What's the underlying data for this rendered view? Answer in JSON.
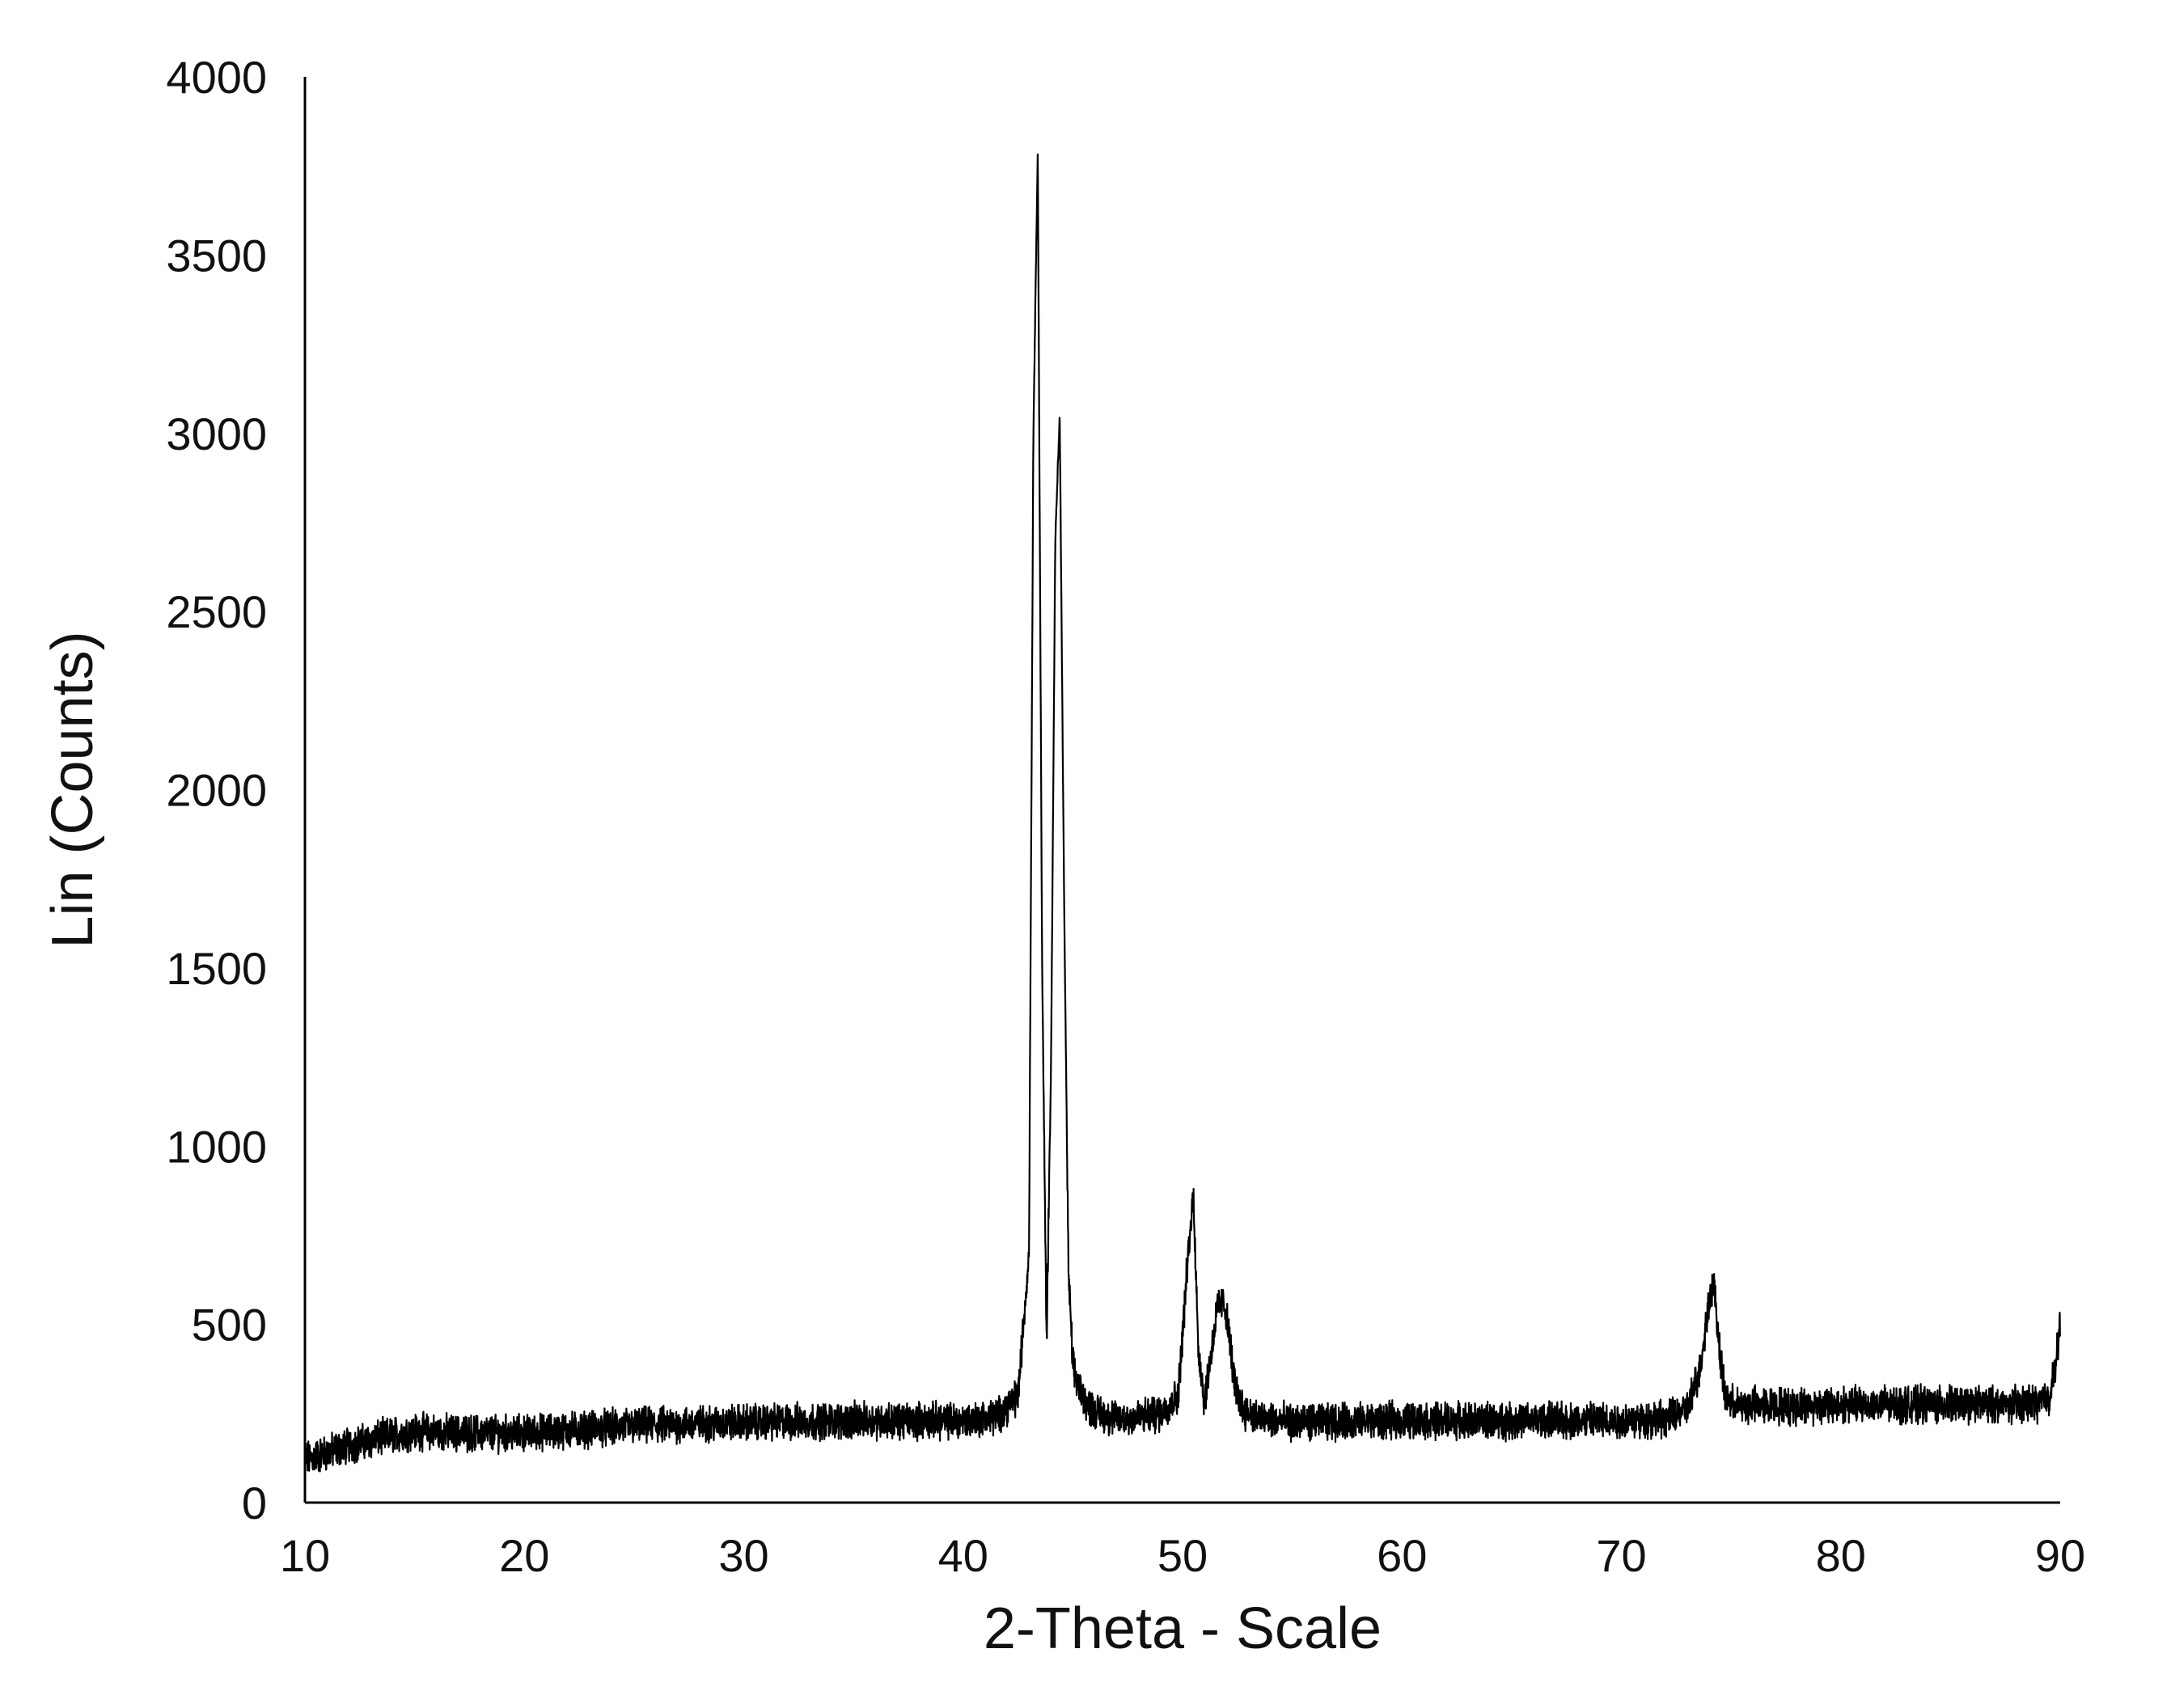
{
  "chart_data": {
    "type": "line",
    "xlabel": "2-Theta - Scale",
    "ylabel": "Lin (Counts)",
    "xlim": [
      10,
      90
    ],
    "ylim": [
      0,
      4000
    ],
    "x_ticks": [
      "10",
      "20",
      "30",
      "40",
      "50",
      "60",
      "70",
      "80",
      "90"
    ],
    "y_ticks": [
      "0",
      "500",
      "1000",
      "1500",
      "2000",
      "2500",
      "3000",
      "3500",
      "4000"
    ],
    "grid": false,
    "legend": "none",
    "line_color": "#000000",
    "series": [
      {
        "x": [
          10,
          12,
          14,
          15,
          17,
          20,
          25,
          30,
          35,
          40,
          41.5,
          42.5,
          43.0,
          43.2,
          43.4,
          43.6,
          43.8,
          44.0,
          44.2,
          44.4,
          44.6,
          44.8,
          45.0,
          45.3,
          45.7,
          46.2,
          47,
          48,
          49,
          49.8,
          50.2,
          50.5,
          50.7,
          51.0,
          51.3,
          51.6,
          51.9,
          52.1,
          52.4,
          52.8,
          53.5,
          55,
          60,
          65,
          70,
          72,
          73,
          73.6,
          74.0,
          74.2,
          74.4,
          74.7,
          75.2,
          76,
          78,
          80,
          85,
          88,
          89,
          89.5,
          89.8,
          90
        ],
        "y": [
          120,
          160,
          190,
          200,
          195,
          195,
          215,
          225,
          230,
          230,
          240,
          300,
          700,
          3000,
          3800,
          1500,
          450,
          1200,
          2700,
          3050,
          1700,
          650,
          380,
          320,
          270,
          250,
          235,
          240,
          250,
          300,
          650,
          870,
          450,
          280,
          420,
          550,
          560,
          480,
          320,
          260,
          235,
          225,
          230,
          230,
          230,
          235,
          260,
          380,
          570,
          620,
          480,
          300,
          270,
          275,
          270,
          275,
          275,
          275,
          280,
          300,
          380,
          520
        ]
      }
    ]
  }
}
